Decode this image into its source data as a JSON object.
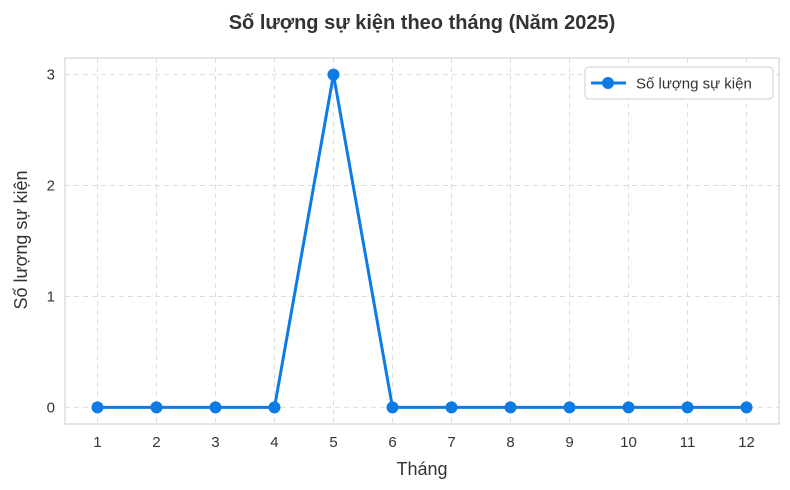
{
  "chart_data": {
    "type": "line",
    "title": "Số lượng sự kiện theo tháng (Năm 2025)",
    "xlabel": "Tháng",
    "ylabel": "Số lượng sự kiện",
    "x": [
      1,
      2,
      3,
      4,
      5,
      6,
      7,
      8,
      9,
      10,
      11,
      12
    ],
    "x_tick_labels": [
      "1",
      "2",
      "3",
      "4",
      "5",
      "6",
      "7",
      "8",
      "9",
      "10",
      "11",
      "12"
    ],
    "y_ticks": [
      0,
      1,
      2,
      3
    ],
    "y_tick_labels": [
      "0",
      "1",
      "2",
      "3"
    ],
    "xlim": [
      0.45,
      12.55
    ],
    "ylim": [
      -0.15,
      3.15
    ],
    "grid": true,
    "legend_position": "top-right",
    "series": [
      {
        "name": "Số lượng sự kiện",
        "values": [
          0,
          0,
          0,
          0,
          3,
          0,
          0,
          0,
          0,
          0,
          0,
          0
        ],
        "color": "#0d7be6",
        "marker": "circle"
      }
    ]
  }
}
